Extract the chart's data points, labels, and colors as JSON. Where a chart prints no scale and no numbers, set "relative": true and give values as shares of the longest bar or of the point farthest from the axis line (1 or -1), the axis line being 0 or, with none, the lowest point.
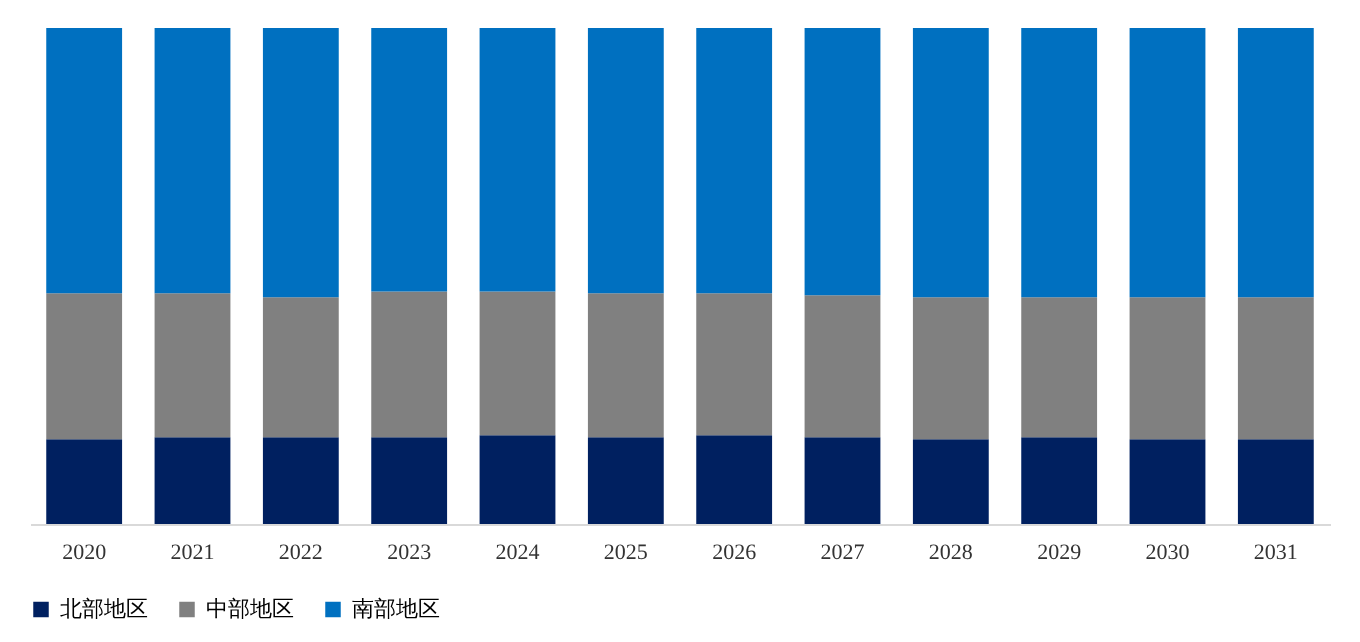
{
  "chart_data": {
    "type": "bar",
    "stacked": true,
    "relative": true,
    "legend": "bottom",
    "grid": false,
    "categories": [
      "2020",
      "2021",
      "2022",
      "2023",
      "2024",
      "2025",
      "2026",
      "2027",
      "2028",
      "2029",
      "2030",
      "2031"
    ],
    "series": [
      {
        "name": "北部地区",
        "color": "#002060",
        "values": [
          0.171,
          0.175,
          0.175,
          0.175,
          0.179,
          0.175,
          0.179,
          0.175,
          0.171,
          0.175,
          0.171,
          0.171
        ]
      },
      {
        "name": "中部地区",
        "color": "#808080",
        "values": [
          0.294,
          0.29,
          0.282,
          0.294,
          0.29,
          0.29,
          0.286,
          0.286,
          0.286,
          0.282,
          0.286,
          0.286
        ]
      },
      {
        "name": "南部地区",
        "color": "#0070c0",
        "values": [
          0.535,
          0.535,
          0.543,
          0.531,
          0.531,
          0.535,
          0.535,
          0.539,
          0.543,
          0.543,
          0.543,
          0.543
        ]
      }
    ]
  }
}
